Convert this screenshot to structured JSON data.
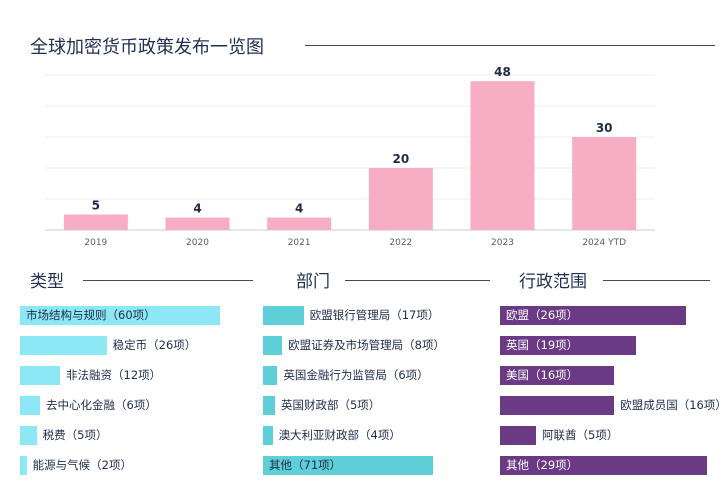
{
  "title": "全球加密货币政策发布一览图",
  "chart_data": [
    {
      "type": "bar",
      "title": "全球加密货币政策发布一览图",
      "categories": [
        "2019",
        "2020",
        "2021",
        "2022",
        "2023",
        "2024 YTD"
      ],
      "values": [
        5,
        4,
        4,
        20,
        48,
        30
      ],
      "ylim": [
        0,
        50
      ],
      "xlabel": "",
      "ylabel": "",
      "grid": true,
      "color": "#f7adc3"
    },
    {
      "type": "bar",
      "orientation": "horizontal",
      "title": "类型",
      "categories": [
        "市场结构与规则",
        "稳定币",
        "非法融资",
        "去中心化金融",
        "税费",
        "能源与气候"
      ],
      "labels": [
        "市场结构与规则（60项）",
        "稳定币（26项）",
        "非法融资（12项）",
        "去中心化金融（6项）",
        "税费（5项）",
        "能源与气候（2项）"
      ],
      "values": [
        60,
        26,
        12,
        6,
        5,
        2
      ],
      "color": "#8de8f6"
    },
    {
      "type": "bar",
      "orientation": "horizontal",
      "title": "部门",
      "categories": [
        "欧盟银行管理局",
        "欧盟证券及市场管理局",
        "英国金融行为监管局",
        "英国财政部",
        "澳大利亚财政部",
        "其他"
      ],
      "labels": [
        "欧盟银行管理局（17项）",
        "欧盟证券及市场管理局（8项）",
        "英国金融行为监管局（6项）",
        "英国财政部（5项）",
        "澳大利亚财政部（4项）",
        "其他（71项）"
      ],
      "values": [
        17,
        8,
        6,
        5,
        4,
        71
      ],
      "color": "#5ecfd6"
    },
    {
      "type": "bar",
      "orientation": "horizontal",
      "title": "行政范围",
      "categories": [
        "欧盟",
        "英国",
        "美国",
        "欧盟成员国",
        "阿联酋",
        "其他"
      ],
      "labels": [
        "欧盟（26项）",
        "英国（19项）",
        "美国（16项）",
        "欧盟成员国（16项）",
        "阿联酋（5项）",
        "其他（29项）"
      ],
      "values": [
        26,
        19,
        16,
        16,
        5,
        29
      ],
      "color": "#6a3a84"
    }
  ]
}
